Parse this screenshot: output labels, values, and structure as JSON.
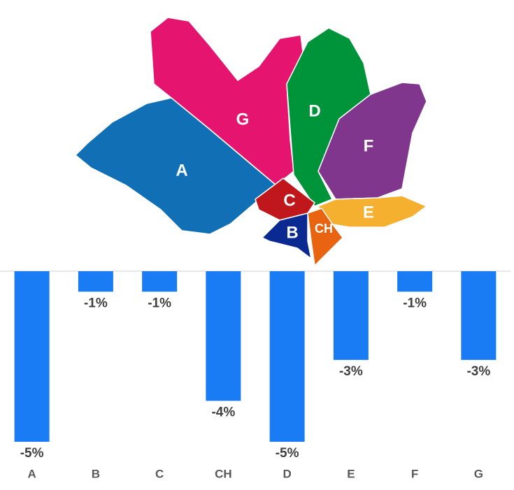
{
  "chart_data": {
    "type": "bar",
    "categories": [
      "A",
      "B",
      "C",
      "CH",
      "D",
      "E",
      "F",
      "G"
    ],
    "values": [
      -5,
      -0.6,
      -0.6,
      -3.8,
      -5,
      -2.6,
      -0.6,
      -2.6
    ],
    "value_labels": [
      "-5%",
      "-1%",
      "-1%",
      "-4%",
      "-5%",
      "-3%",
      "-1%",
      "-3%"
    ],
    "color": "#1a7cf5",
    "ylim": [
      -5,
      0
    ]
  }
}
